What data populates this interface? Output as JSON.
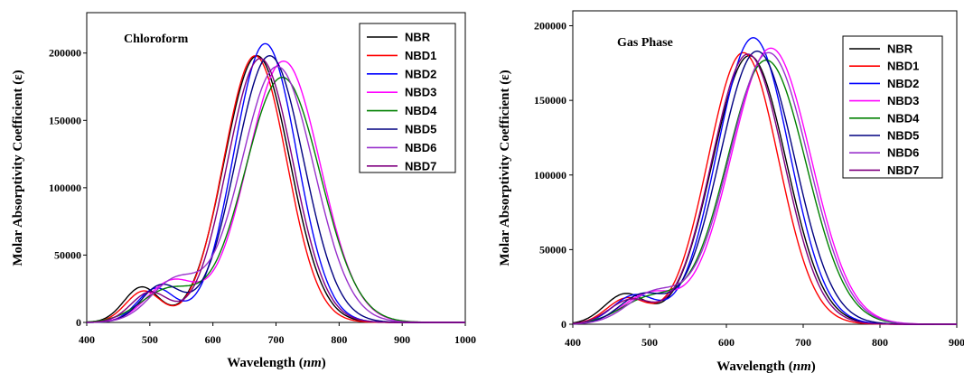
{
  "chart_data": [
    {
      "type": "line",
      "title": "Chloroform",
      "xlabel": "Wavelength (nm)",
      "ylabel": "Molar Absorptivity Coefficient (ε)",
      "xlim": [
        400,
        1000
      ],
      "ylim": [
        0,
        230000
      ],
      "xticks": [
        "400",
        "500",
        "600",
        "700",
        "800",
        "900",
        "1000"
      ],
      "yticks": [
        "0",
        "50000",
        "100000",
        "150000",
        "200000"
      ],
      "grid": false,
      "legend": "top-right",
      "series": [
        {
          "name": "NBR",
          "color": "#000000",
          "bands": [
            [
              487,
              26000,
              28
            ],
            [
              670,
              198000,
              52
            ]
          ]
        },
        {
          "name": "NBD1",
          "color": "#ff0000",
          "bands": [
            [
              490,
              23000,
              28
            ],
            [
              667,
              198000,
              50
            ]
          ]
        },
        {
          "name": "NBD2",
          "color": "#0000ff",
          "bands": [
            [
              510,
              25000,
              30
            ],
            [
              683,
              207000,
              50
            ]
          ]
        },
        {
          "name": "NBD3",
          "color": "#ff00ff",
          "bands": [
            [
              535,
              30000,
              40
            ],
            [
              712,
              194000,
              58
            ]
          ]
        },
        {
          "name": "NBD4",
          "color": "#008000",
          "bands": [
            [
              530,
              24000,
              45
            ],
            [
              710,
              182000,
              60
            ]
          ]
        },
        {
          "name": "NBD5",
          "color": "#000080",
          "bands": [
            [
              518,
              27000,
              32
            ],
            [
              690,
              198000,
              54
            ]
          ]
        },
        {
          "name": "NBD6",
          "color": "#9932cc",
          "bands": [
            [
              540,
              30000,
              40
            ],
            [
              702,
              190000,
              58
            ]
          ]
        },
        {
          "name": "NBD7",
          "color": "#800080",
          "bands": [
            [
              500,
              22000,
              30
            ],
            [
              675,
              196000,
              52
            ]
          ]
        }
      ]
    },
    {
      "type": "line",
      "title": "Gas Phase",
      "xlabel": "Wavelength (nm)",
      "ylabel": "Molar Absorptivity Coefficient (ε)",
      "xlim": [
        400,
        900
      ],
      "ylim": [
        0,
        210000
      ],
      "xticks": [
        "400",
        "500",
        "600",
        "700",
        "800",
        "900"
      ],
      "yticks": [
        "0",
        "50000",
        "100000",
        "150000",
        "200000"
      ],
      "grid": false,
      "legend": "top-right",
      "series": [
        {
          "name": "NBR",
          "color": "#000000",
          "bands": [
            [
              468,
              20000,
              27
            ],
            [
              630,
              180000,
              48
            ]
          ]
        },
        {
          "name": "NBD1",
          "color": "#ff0000",
          "bands": [
            [
              470,
              17000,
              26
            ],
            [
              622,
              182000,
              46
            ]
          ]
        },
        {
          "name": "NBD2",
          "color": "#0000ff",
          "bands": [
            [
              480,
              19000,
              28
            ],
            [
              635,
              192000,
              47
            ]
          ]
        },
        {
          "name": "NBD3",
          "color": "#ff00ff",
          "bands": [
            [
              500,
              20000,
              35
            ],
            [
              658,
              185000,
              52
            ]
          ]
        },
        {
          "name": "NBD4",
          "color": "#008000",
          "bands": [
            [
              500,
              17000,
              38
            ],
            [
              652,
              177000,
              52
            ]
          ]
        },
        {
          "name": "NBD5",
          "color": "#000080",
          "bands": [
            [
              490,
              19000,
              30
            ],
            [
              640,
              183000,
              49
            ]
          ]
        },
        {
          "name": "NBD6",
          "color": "#9932cc",
          "bands": [
            [
              505,
              20000,
              35
            ],
            [
              655,
              182000,
              52
            ]
          ]
        },
        {
          "name": "NBD7",
          "color": "#800080",
          "bands": [
            [
              475,
              16000,
              28
            ],
            [
              628,
              181000,
              47
            ]
          ]
        }
      ]
    }
  ]
}
